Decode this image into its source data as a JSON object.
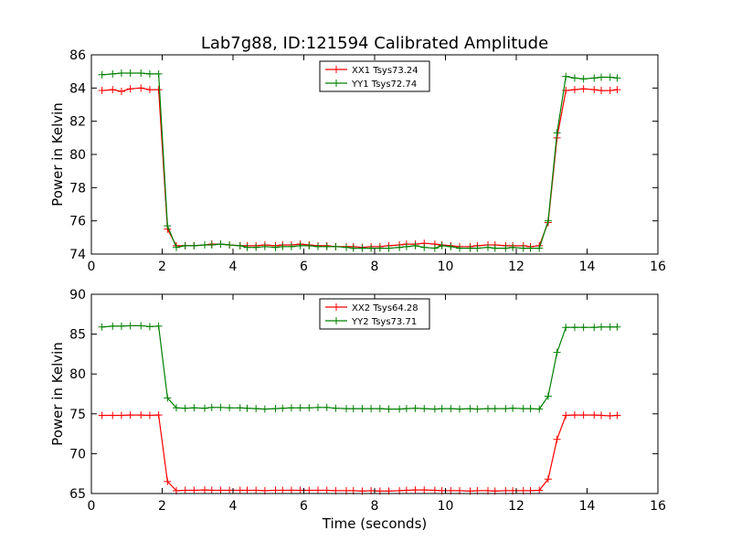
{
  "title": "Lab7g88, ID:121594 Calibrated Amplitude",
  "colors": {
    "xx": "#ff0000",
    "yy": "#008000",
    "axis": "#000000"
  },
  "chart_data": [
    {
      "type": "line",
      "xlabel": "",
      "ylabel": "Power in Kelvin",
      "xlim": [
        0,
        16
      ],
      "ylim": [
        74,
        86
      ],
      "xticks": [
        "0",
        "2",
        "4",
        "6",
        "8",
        "10",
        "12",
        "14",
        "16"
      ],
      "yticks": [
        "74",
        "76",
        "78",
        "80",
        "82",
        "84",
        "86"
      ],
      "legend_position": "top-center",
      "x": [
        0.3,
        0.6,
        0.85,
        1.1,
        1.4,
        1.65,
        1.9,
        2.15,
        2.4,
        2.65,
        2.9,
        3.2,
        3.4,
        3.65,
        3.9,
        4.2,
        4.4,
        4.65,
        4.9,
        5.2,
        5.4,
        5.65,
        5.9,
        6.15,
        6.4,
        6.65,
        6.9,
        7.2,
        7.4,
        7.65,
        7.9,
        8.15,
        8.4,
        8.7,
        8.9,
        9.15,
        9.4,
        9.7,
        9.9,
        10.15,
        10.4,
        10.7,
        10.9,
        11.2,
        11.4,
        11.7,
        11.9,
        12.2,
        12.4,
        12.65,
        12.9,
        13.15,
        13.4,
        13.65,
        13.9,
        14.2,
        14.4,
        14.65,
        14.85
      ],
      "grid": false,
      "series": [
        {
          "name": "XX1 Tsys73.24",
          "color": "#ff0000",
          "values": [
            83.85,
            83.9,
            83.8,
            83.95,
            84.0,
            83.9,
            83.9,
            75.5,
            74.5,
            74.5,
            74.5,
            74.55,
            74.6,
            74.6,
            74.55,
            74.5,
            74.5,
            74.5,
            74.55,
            74.5,
            74.55,
            74.55,
            74.6,
            74.55,
            74.5,
            74.5,
            74.45,
            74.45,
            74.45,
            74.4,
            74.45,
            74.45,
            74.5,
            74.55,
            74.6,
            74.6,
            74.65,
            74.6,
            74.55,
            74.5,
            74.45,
            74.45,
            74.5,
            74.55,
            74.55,
            74.5,
            74.5,
            74.5,
            74.45,
            74.5,
            75.9,
            81.0,
            83.85,
            83.9,
            83.95,
            83.9,
            83.85,
            83.85,
            83.9
          ]
        },
        {
          "name": "YY1 Tsys72.74",
          "color": "#008000",
          "values": [
            84.8,
            84.85,
            84.9,
            84.9,
            84.9,
            84.85,
            84.85,
            75.7,
            74.4,
            74.5,
            74.5,
            74.55,
            74.55,
            74.6,
            74.55,
            74.5,
            74.4,
            74.4,
            74.45,
            74.4,
            74.45,
            74.45,
            74.5,
            74.5,
            74.45,
            74.45,
            74.45,
            74.4,
            74.35,
            74.35,
            74.35,
            74.35,
            74.35,
            74.4,
            74.45,
            74.5,
            74.4,
            74.35,
            74.5,
            74.45,
            74.35,
            74.35,
            74.35,
            74.4,
            74.35,
            74.35,
            74.4,
            74.35,
            74.35,
            74.35,
            76.0,
            81.3,
            84.7,
            84.6,
            84.55,
            84.6,
            84.65,
            84.65,
            84.6
          ]
        }
      ]
    },
    {
      "type": "line",
      "xlabel": "Time (seconds)",
      "ylabel": "Power in Kelvin",
      "xlim": [
        0,
        16
      ],
      "ylim": [
        65,
        90
      ],
      "xticks": [
        "0",
        "2",
        "4",
        "6",
        "8",
        "10",
        "12",
        "14",
        "16"
      ],
      "yticks": [
        "65",
        "70",
        "75",
        "80",
        "85",
        "90"
      ],
      "legend_position": "top-center",
      "x": [
        0.3,
        0.6,
        0.85,
        1.1,
        1.4,
        1.65,
        1.9,
        2.15,
        2.4,
        2.65,
        2.9,
        3.2,
        3.4,
        3.65,
        3.9,
        4.2,
        4.4,
        4.65,
        4.9,
        5.2,
        5.4,
        5.65,
        5.9,
        6.15,
        6.4,
        6.65,
        6.9,
        7.2,
        7.4,
        7.65,
        7.9,
        8.15,
        8.4,
        8.7,
        8.9,
        9.15,
        9.4,
        9.7,
        9.9,
        10.15,
        10.4,
        10.7,
        10.9,
        11.2,
        11.4,
        11.7,
        11.9,
        12.2,
        12.4,
        12.65,
        12.9,
        13.15,
        13.4,
        13.65,
        13.9,
        14.2,
        14.4,
        14.65,
        14.85
      ],
      "grid": false,
      "series": [
        {
          "name": "XX2 Tsys64.28",
          "color": "#ff0000",
          "values": [
            74.8,
            74.8,
            74.8,
            74.85,
            74.85,
            74.8,
            74.85,
            66.5,
            65.35,
            65.4,
            65.4,
            65.45,
            65.4,
            65.4,
            65.4,
            65.4,
            65.4,
            65.4,
            65.35,
            65.4,
            65.4,
            65.4,
            65.4,
            65.4,
            65.4,
            65.4,
            65.35,
            65.35,
            65.35,
            65.3,
            65.35,
            65.3,
            65.3,
            65.35,
            65.4,
            65.45,
            65.45,
            65.4,
            65.35,
            65.35,
            65.35,
            65.3,
            65.35,
            65.35,
            65.3,
            65.35,
            65.35,
            65.35,
            65.35,
            65.4,
            66.8,
            71.8,
            74.8,
            74.85,
            74.85,
            74.85,
            74.8,
            74.75,
            74.8
          ]
        },
        {
          "name": "YY2 Tsys73.71",
          "color": "#008000",
          "values": [
            85.9,
            86.0,
            86.0,
            86.05,
            86.05,
            85.95,
            86.0,
            77.0,
            75.75,
            75.7,
            75.75,
            75.7,
            75.8,
            75.8,
            75.75,
            75.75,
            75.7,
            75.65,
            75.6,
            75.65,
            75.7,
            75.75,
            75.75,
            75.75,
            75.8,
            75.8,
            75.7,
            75.65,
            75.65,
            75.65,
            75.65,
            75.65,
            75.6,
            75.6,
            75.65,
            75.7,
            75.65,
            75.6,
            75.65,
            75.65,
            75.6,
            75.65,
            75.6,
            75.65,
            75.65,
            75.65,
            75.7,
            75.65,
            75.65,
            75.6,
            77.2,
            82.7,
            85.85,
            85.85,
            85.85,
            85.85,
            85.9,
            85.9,
            85.9
          ]
        }
      ]
    }
  ]
}
